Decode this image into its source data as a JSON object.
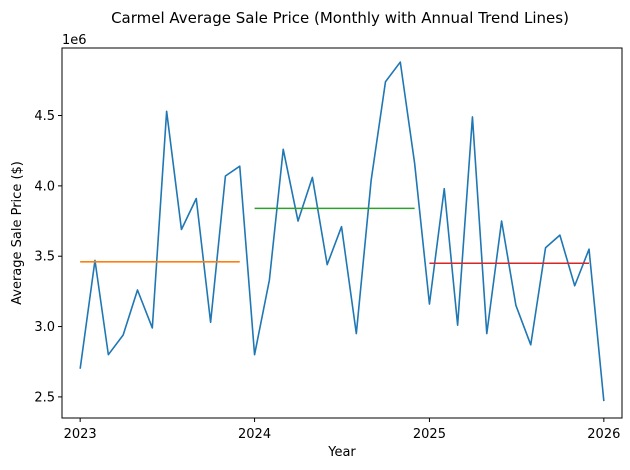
{
  "chart_data": {
    "type": "line",
    "title": "Carmel Average Sale Price (Monthly with Annual Trend Lines)",
    "xlabel": "Year",
    "ylabel": "Average Sale Price ($)",
    "y_multiplier_label": "1e6",
    "x_range": [
      "2022-11-24",
      "2026-02-08"
    ],
    "ylim": [
      2.35,
      4.98
    ],
    "x_ticks": [
      {
        "date": "2023-01-01",
        "label": "2023"
      },
      {
        "date": "2024-01-01",
        "label": "2024"
      },
      {
        "date": "2025-01-01",
        "label": "2025"
      },
      {
        "date": "2026-01-01",
        "label": "2026"
      }
    ],
    "y_ticks": [
      {
        "value": 2.5,
        "label": "2.5"
      },
      {
        "value": 3.0,
        "label": "3.0"
      },
      {
        "value": 3.5,
        "label": "3.5"
      },
      {
        "value": 4.0,
        "label": "4.0"
      },
      {
        "value": 4.5,
        "label": "4.5"
      }
    ],
    "grid": false,
    "series": [
      {
        "color": "#1f77b4",
        "x": [
          "2023-01-01",
          "2023-02-01",
          "2023-03-01",
          "2023-04-01",
          "2023-05-01",
          "2023-06-01",
          "2023-07-01",
          "2023-08-01",
          "2023-09-01",
          "2023-10-01",
          "2023-11-01",
          "2023-12-01",
          "2024-01-01",
          "2024-02-01",
          "2024-03-01",
          "2024-04-01",
          "2024-05-01",
          "2024-06-01",
          "2024-07-01",
          "2024-08-01",
          "2024-09-01",
          "2024-10-01",
          "2024-11-01",
          "2024-12-01",
          "2025-01-01",
          "2025-02-01",
          "2025-03-01",
          "2025-04-01",
          "2025-05-01",
          "2025-06-01",
          "2025-07-01",
          "2025-08-01",
          "2025-09-01",
          "2025-10-01",
          "2025-11-01",
          "2025-12-01",
          "2026-01-01"
        ],
        "values": [
          2.7,
          3.47,
          2.8,
          2.94,
          3.26,
          2.99,
          4.53,
          3.69,
          3.91,
          3.03,
          4.07,
          4.14,
          2.8,
          3.33,
          4.26,
          3.75,
          4.06,
          3.44,
          3.71,
          2.95,
          4.04,
          4.74,
          4.88,
          4.16,
          3.16,
          3.98,
          3.01,
          4.49,
          2.95,
          3.75,
          3.15,
          2.87,
          3.56,
          3.65,
          3.29,
          3.55,
          2.47
        ]
      },
      {
        "color": "#ff7f0e",
        "x": [
          "2023-01-01",
          "2023-12-01"
        ],
        "values": [
          3.46,
          3.46
        ]
      },
      {
        "color": "#2ca02c",
        "x": [
          "2024-01-01",
          "2024-12-01"
        ],
        "values": [
          3.84,
          3.84
        ]
      },
      {
        "color": "#d62728",
        "x": [
          "2025-01-01",
          "2025-12-01"
        ],
        "values": [
          3.45,
          3.45
        ]
      }
    ]
  }
}
